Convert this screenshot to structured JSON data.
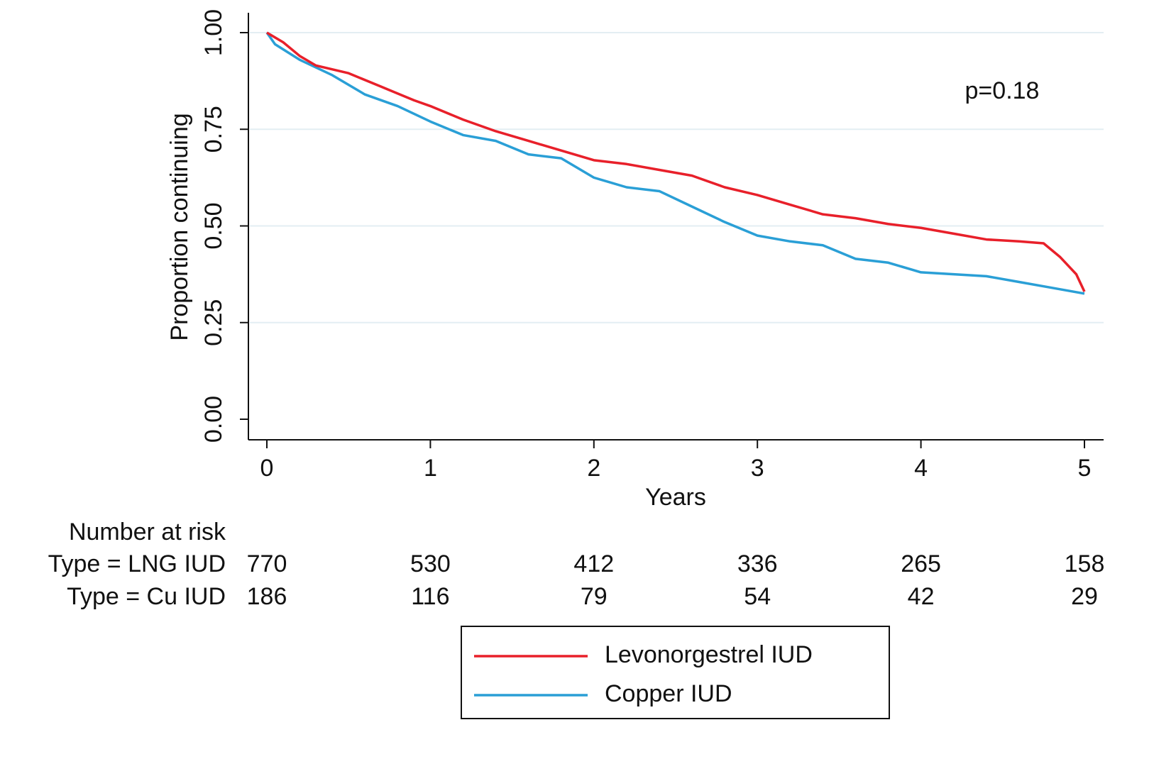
{
  "chart_data": {
    "type": "line",
    "xlabel": "Years",
    "ylabel": "Proportion continuing",
    "annotation": "p=0.18",
    "xlim": [
      0,
      5
    ],
    "ylim": [
      0,
      1
    ],
    "xticks": [
      0,
      1,
      2,
      3,
      4,
      5
    ],
    "yticks": [
      {
        "value": 0,
        "label": "0.00"
      },
      {
        "value": 0.25,
        "label": "0.25"
      },
      {
        "value": 0.5,
        "label": "0.50"
      },
      {
        "value": 0.75,
        "label": "0.75"
      },
      {
        "value": 1,
        "label": "1.00"
      }
    ],
    "grid": true,
    "series": [
      {
        "name": "Levonorgestrel IUD",
        "color": "#e8202a",
        "x": [
          0,
          0.1,
          0.2,
          0.3,
          0.5,
          0.7,
          0.9,
          1.0,
          1.2,
          1.4,
          1.6,
          1.8,
          2.0,
          2.2,
          2.4,
          2.6,
          2.8,
          3.0,
          3.2,
          3.4,
          3.6,
          3.8,
          4.0,
          4.2,
          4.4,
          4.6,
          4.75,
          4.85,
          4.95,
          5.0
        ],
        "values": [
          1.0,
          0.975,
          0.94,
          0.915,
          0.895,
          0.86,
          0.825,
          0.81,
          0.775,
          0.745,
          0.72,
          0.695,
          0.67,
          0.66,
          0.645,
          0.63,
          0.6,
          0.58,
          0.555,
          0.53,
          0.52,
          0.505,
          0.495,
          0.48,
          0.465,
          0.46,
          0.455,
          0.42,
          0.375,
          0.33
        ]
      },
      {
        "name": "Copper IUD",
        "color": "#2a9fd6",
        "x": [
          0,
          0.05,
          0.2,
          0.4,
          0.6,
          0.8,
          1.0,
          1.2,
          1.4,
          1.6,
          1.8,
          2.0,
          2.2,
          2.4,
          2.6,
          2.8,
          3.0,
          3.2,
          3.4,
          3.6,
          3.8,
          4.0,
          4.2,
          4.4,
          4.6,
          4.8,
          5.0
        ],
        "values": [
          1.0,
          0.97,
          0.93,
          0.89,
          0.84,
          0.81,
          0.77,
          0.735,
          0.72,
          0.685,
          0.675,
          0.625,
          0.6,
          0.59,
          0.55,
          0.51,
          0.475,
          0.46,
          0.45,
          0.415,
          0.405,
          0.38,
          0.375,
          0.37,
          0.355,
          0.34,
          0.325
        ]
      }
    ],
    "risk_table": {
      "title": "Number at risk",
      "rows": [
        {
          "label": "Type = LNG IUD",
          "values": [
            770,
            530,
            412,
            336,
            265,
            158
          ]
        },
        {
          "label": "Type = Cu IUD",
          "values": [
            186,
            116,
            79,
            54,
            42,
            29
          ]
        }
      ]
    }
  }
}
